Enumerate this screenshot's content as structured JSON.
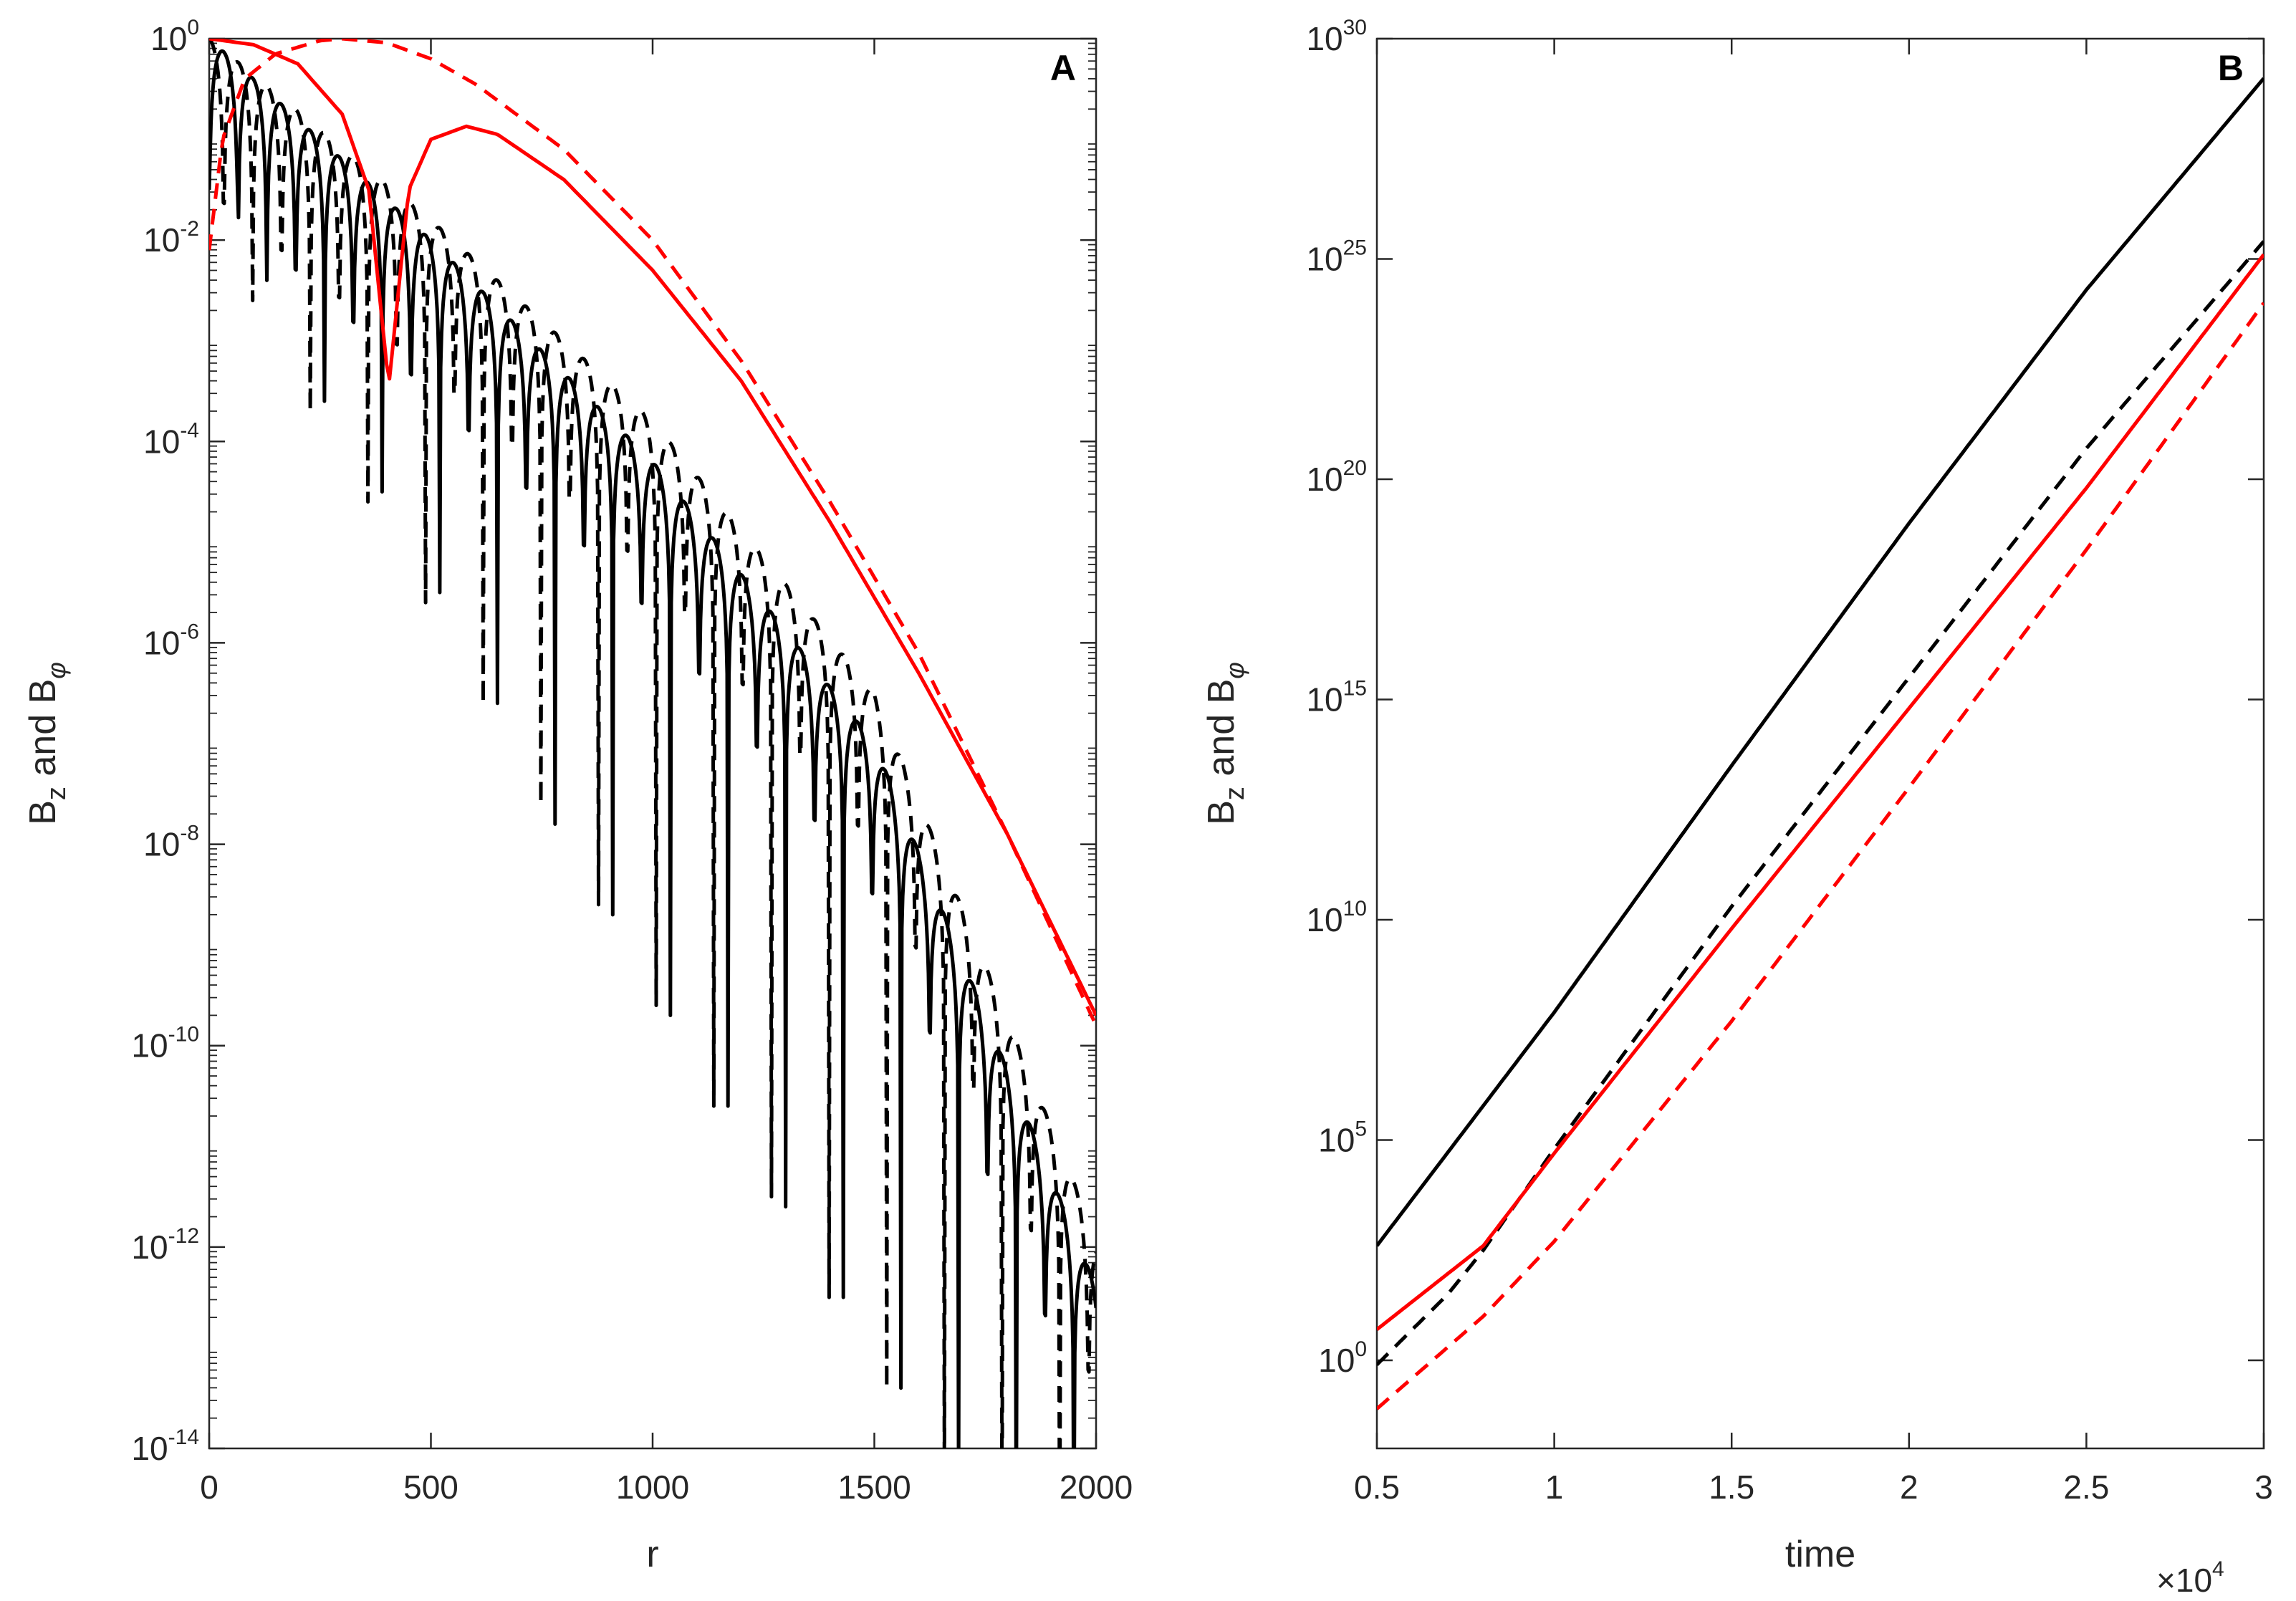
{
  "chart_data": [
    {
      "panel": "A",
      "type": "line",
      "xlabel": "r",
      "ylabel": "B_z and B_φ",
      "ylabel_parts": {
        "b1": "B",
        "z": "z",
        "and": " and ",
        "b2": "B",
        "phi": "φ"
      },
      "xlim": [
        0,
        2000
      ],
      "ylim_log10": [
        -14,
        0
      ],
      "y_scale": "log",
      "xticks": [
        "0",
        "500",
        "1000",
        "1500",
        "2000"
      ],
      "yticks": [
        {
          "base": "10",
          "exp": "0"
        },
        {
          "base": "10",
          "exp": "-2"
        },
        {
          "base": "10",
          "exp": "-4"
        },
        {
          "base": "10",
          "exp": "-6"
        },
        {
          "base": "10",
          "exp": "-8"
        },
        {
          "base": "10",
          "exp": "-10"
        },
        {
          "base": "10",
          "exp": "-12"
        },
        {
          "base": "10",
          "exp": "-14"
        }
      ],
      "series": [
        {
          "name": "black solid (oscillatory)",
          "color": "#000000",
          "dash": "solid",
          "kind": "oscillatory",
          "envelope": [
            [
              0,
              0.0
            ],
            [
              500,
              -2.0
            ],
            [
              1000,
              -4.2
            ],
            [
              1500,
              -7.0
            ],
            [
              2000,
              -12.4
            ]
          ],
          "period": 65,
          "phase": 0,
          "dip_depths_log10": [
            -1.5,
            -2.0,
            -2.4,
            -3.0,
            -3.6,
            -4.0,
            -4.5,
            -5.0,
            -5.5,
            -6.1,
            -6.6,
            -7.2,
            -7.8,
            -8.3,
            -8.7,
            -9.2,
            -9.7,
            -10.2,
            -10.6,
            -11.1,
            -11.6,
            -12.1,
            -12.5,
            -13.0,
            -13.4,
            -13.8,
            -14.2,
            -14.5,
            -14.8,
            -15.0,
            -15.0
          ]
        },
        {
          "name": "black dashed (oscillatory)",
          "color": "#000000",
          "dash": "dashed",
          "kind": "oscillatory",
          "envelope": [
            [
              0,
              0.0
            ],
            [
              500,
              -1.8
            ],
            [
              1000,
              -3.8
            ],
            [
              1500,
              -6.5
            ],
            [
              2000,
              -11.9
            ]
          ],
          "period": 65,
          "phase": 32,
          "dip_depths_log10": [
            -1.8,
            -2.2,
            -2.6,
            -3.2,
            -3.7,
            -4.1,
            -4.6,
            -5.1,
            -5.6,
            -6.1,
            -6.6,
            -7.0,
            -7.6,
            -8.1,
            -8.6,
            -9.1,
            -9.6,
            -10.1,
            -10.6,
            -11.0,
            -11.5,
            -12.0,
            -12.5,
            -13.0,
            -13.4,
            -13.8,
            -14.2,
            -14.6,
            -14.9,
            -15.0,
            -15.0
          ]
        },
        {
          "name": "red solid",
          "color": "#ff0000",
          "dash": "solid",
          "points_log10": [
            [
              0,
              0.0
            ],
            [
              100,
              -0.06
            ],
            [
              200,
              -0.25
            ],
            [
              300,
              -0.75
            ],
            [
              360,
              -1.5
            ],
            [
              405,
              -3.45
            ],
            [
              450,
              -1.5
            ],
            [
              500,
              -1.0
            ],
            [
              580,
              -0.87
            ],
            [
              650,
              -0.95
            ],
            [
              800,
              -1.4
            ],
            [
              1000,
              -2.3
            ],
            [
              1200,
              -3.4
            ],
            [
              1400,
              -4.8
            ],
            [
              1600,
              -6.3
            ],
            [
              1800,
              -7.9
            ],
            [
              2000,
              -9.7
            ]
          ]
        },
        {
          "name": "red dashed",
          "color": "#ff0000",
          "dash": "dashed",
          "points_log10": [
            [
              0,
              -2.1
            ],
            [
              30,
              -1.0
            ],
            [
              80,
              -0.4
            ],
            [
              150,
              -0.15
            ],
            [
              250,
              -0.02
            ],
            [
              300,
              0.0
            ],
            [
              400,
              -0.04
            ],
            [
              500,
              -0.2
            ],
            [
              600,
              -0.45
            ],
            [
              800,
              -1.1
            ],
            [
              1000,
              -2.0
            ],
            [
              1200,
              -3.2
            ],
            [
              1400,
              -4.6
            ],
            [
              1600,
              -6.1
            ],
            [
              1800,
              -7.9
            ],
            [
              2000,
              -9.8
            ]
          ]
        }
      ]
    },
    {
      "panel": "B",
      "type": "line",
      "xlabel": "time",
      "ylabel": "B_z and B_φ",
      "ylabel_parts": {
        "b1": "B",
        "z": "z",
        "and": " and ",
        "b2": "B",
        "phi": "φ"
      },
      "x_multiplier": {
        "prefix": "×10",
        "exp": "4"
      },
      "xlim": [
        0.5,
        3.0
      ],
      "ylim_log10": [
        -2,
        30
      ],
      "y_scale": "log",
      "xticks": [
        "0.5",
        "1",
        "1.5",
        "2",
        "2.5",
        "3"
      ],
      "yticks": [
        {
          "base": "10",
          "exp": "30"
        },
        {
          "base": "10",
          "exp": "25"
        },
        {
          "base": "10",
          "exp": "20"
        },
        {
          "base": "10",
          "exp": "15"
        },
        {
          "base": "10",
          "exp": "10"
        },
        {
          "base": "10",
          "exp": "5"
        },
        {
          "base": "10",
          "exp": "0"
        }
      ],
      "series": [
        {
          "name": "black solid",
          "color": "#000000",
          "dash": "solid",
          "points_log10": [
            [
              0.5,
              2.6
            ],
            [
              1.0,
              7.9
            ],
            [
              1.5,
              13.5
            ],
            [
              2.0,
              19.0
            ],
            [
              2.5,
              24.3
            ],
            [
              3.0,
              29.1
            ]
          ]
        },
        {
          "name": "black dashed",
          "color": "#000000",
          "dash": "dashed",
          "points_log10": [
            [
              0.5,
              -0.1
            ],
            [
              0.7,
              1.5
            ],
            [
              0.8,
              2.5
            ],
            [
              1.0,
              4.8
            ],
            [
              1.5,
              10.3
            ],
            [
              2.0,
              15.5
            ],
            [
              2.5,
              20.7
            ],
            [
              3.0,
              25.4
            ]
          ]
        },
        {
          "name": "red solid",
          "color": "#ff0000",
          "dash": "solid",
          "points_log10": [
            [
              0.5,
              0.7
            ],
            [
              0.8,
              2.6
            ],
            [
              1.0,
              4.7
            ],
            [
              1.5,
              9.8
            ],
            [
              2.0,
              14.8
            ],
            [
              2.5,
              19.8
            ],
            [
              3.0,
              25.1
            ]
          ]
        },
        {
          "name": "red dashed",
          "color": "#ff0000",
          "dash": "dashed",
          "points_log10": [
            [
              0.5,
              -1.1
            ],
            [
              0.8,
              1.0
            ],
            [
              1.0,
              2.7
            ],
            [
              1.5,
              7.7
            ],
            [
              2.0,
              13.0
            ],
            [
              2.5,
              18.4
            ],
            [
              3.0,
              24.0
            ]
          ]
        }
      ]
    }
  ]
}
